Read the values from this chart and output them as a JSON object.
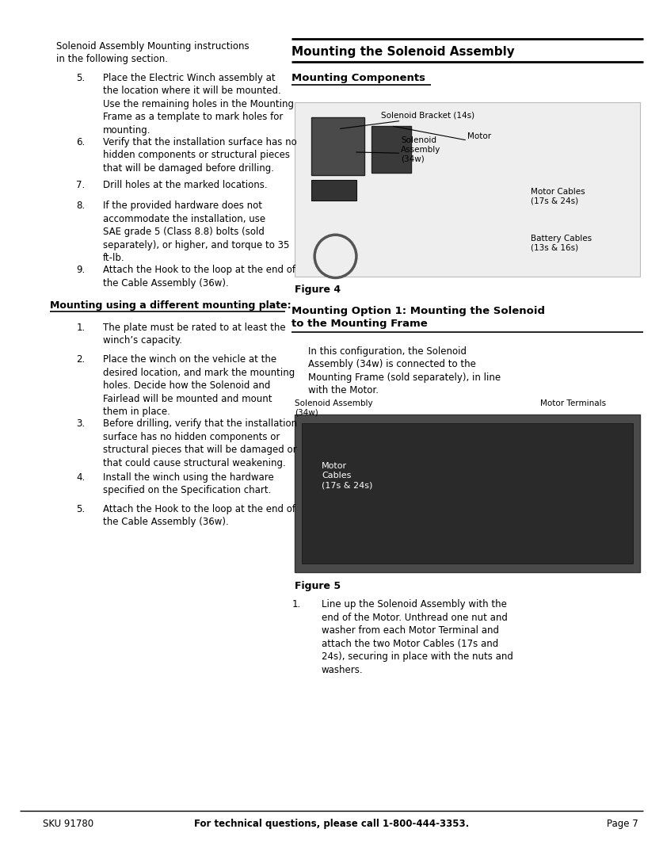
{
  "bg_color": "#ffffff",
  "text_color": "#000000",
  "page_width": 10.8,
  "page_height": 13.97,
  "footer_text_sku": "SKU 91780",
  "footer_text_center": "For technical questions, please call 1-800-444-3353.",
  "footer_text_page": "Page 7",
  "right_title": "Mounting the Solenoid Assembly",
  "right_subtitle1": "Mounting Components",
  "right_subtitle2": "Mounting Option 1: Mounting the Solenoid\nto the Mounting Frame",
  "figure4_label": "Figure 4",
  "figure5_label": "Figure 5",
  "left_intro_text": "Solenoid Assembly Mounting instructions\nin the following section.",
  "left_items_5to9": [
    {
      "num": "5.",
      "text": "Place the Electric Winch assembly at\nthe location where it will be mounted.\nUse the remaining holes in the Mounting\nFrame as a template to mark holes for\nmounting."
    },
    {
      "num": "6.",
      "text": "Verify that the installation surface has no\nhidden components or structural pieces\nthat will be damaged before drilling."
    },
    {
      "num": "7.",
      "text": "Drill holes at the marked locations."
    },
    {
      "num": "8.",
      "text": "If the provided hardware does not\naccommodate the installation, use\nSAE grade 5 (Class 8.8) bolts (sold\nseparately), or higher, and torque to 35\nft-lb."
    },
    {
      "num": "9.",
      "text": "Attach the Hook to the loop at the end of\nthe Cable Assembly (36w)."
    }
  ],
  "mounting_plate_title": "Mounting using a different mounting plate:",
  "left_items_1to5": [
    {
      "num": "1.",
      "text": "The plate must be rated to at least the\nwinch’s capacity."
    },
    {
      "num": "2.",
      "text": "Place the winch on the vehicle at the\ndesired location, and mark the mounting\nholes. Decide how the Solenoid and\nFairlead will be mounted and mount\nthem in place."
    },
    {
      "num": "3.",
      "text": "Before drilling, verify that the installation\nsurface has no hidden components or\nstructural pieces that will be damaged or\nthat could cause structural weakening."
    },
    {
      "num": "4.",
      "text": "Install the winch using the hardware\nspecified on the Specification chart."
    },
    {
      "num": "5.",
      "text": "Attach the Hook to the loop at the end of\nthe Cable Assembly (36w)."
    }
  ],
  "right_option1_text": "In this configuration, the Solenoid\nAssembly (34w) is connected to the\nMounting Frame (sold separately), in line\nwith the Motor.",
  "right_item1_text": "Line up the Solenoid Assembly with the\nend of the Motor. Unthread one nut and\nwasher from each Motor Terminal and\nattach the two Motor Cables (17s and\n24s), securing in place with the nuts and\nwashers."
}
